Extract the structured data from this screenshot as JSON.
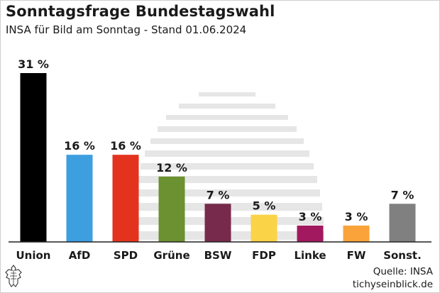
{
  "header": {
    "title": "Sonntagsfrage Bundestagswahl",
    "subtitle": "INSA für Bild am Sonntag - Stand 01.06.2024"
  },
  "footer": {
    "source": "Quelle: INSA",
    "site": "tichyseinblick.de"
  },
  "chart_data": {
    "type": "bar",
    "categories": [
      "Union",
      "AfD",
      "SPD",
      "Grüne",
      "BSW",
      "FDP",
      "Linke",
      "FW",
      "Sonst."
    ],
    "values": [
      31,
      16,
      16,
      12,
      7,
      5,
      3,
      3,
      7
    ],
    "value_labels": [
      "31 %",
      "16 %",
      "16 %",
      "12 %",
      "7 %",
      "5 %",
      "3 %",
      "3 %",
      "7 %"
    ],
    "colors": [
      "#000000",
      "#3d9ee0",
      "#e3331f",
      "#6b9130",
      "#772a4c",
      "#fbd346",
      "#a2195f",
      "#f9a33a",
      "#808080"
    ],
    "ylim": [
      0,
      31
    ],
    "grid": false,
    "legend": "none"
  }
}
